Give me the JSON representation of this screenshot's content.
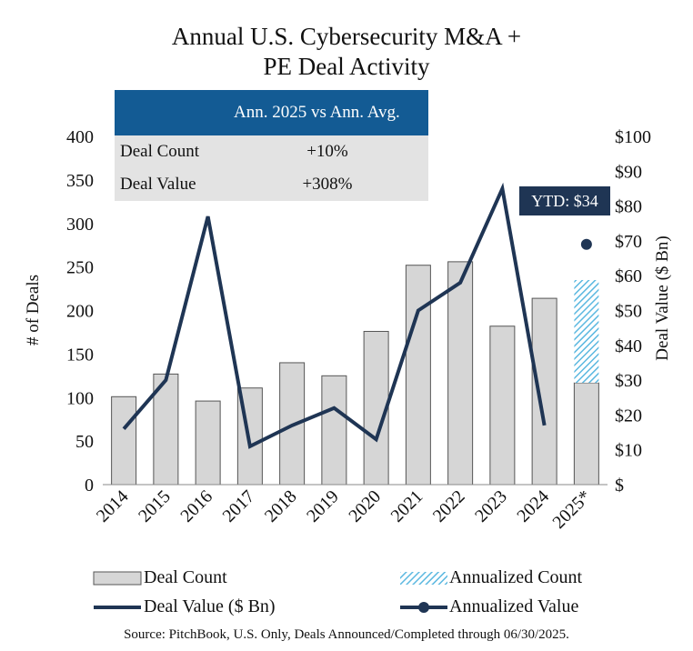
{
  "title_line1": "Annual U.S. Cybersecurity M&A +",
  "title_line2": "PE Deal Activity",
  "callout": {
    "header": "Ann. 2025 vs Ann. Avg.",
    "rows": [
      {
        "label": "Deal Count",
        "value": "+10%"
      },
      {
        "label": "Deal Value",
        "value": "+308%"
      }
    ]
  },
  "ytd_label": "YTD: $34",
  "legend": {
    "deal_count": "Deal Count",
    "annualized_count": "Annualized Count",
    "deal_value": "Deal Value ($ Bn)",
    "annualized_value": "Annualized Value"
  },
  "source": "Source: PitchBook, U.S. Only, Deals Announced/Completed through 06/30/2025.",
  "colors": {
    "bar_fill": "#d6d6d6",
    "bar_stroke": "#555555",
    "line": "#1f3554",
    "hatch": "#5bb8e0",
    "header": "#135b94"
  },
  "chart_data": {
    "type": "bar+line",
    "categories": [
      "2014",
      "2015",
      "2016",
      "2017",
      "2018",
      "2019",
      "2020",
      "2021",
      "2022",
      "2023",
      "2024",
      "2025*"
    ],
    "series": [
      {
        "name": "Deal Count",
        "axis": "left",
        "type": "bar",
        "values": [
          101,
          127,
          96,
          111,
          140,
          125,
          176,
          252,
          256,
          182,
          214,
          117
        ]
      },
      {
        "name": "Annualized Count",
        "axis": "left",
        "type": "bar-stacked-hatched",
        "values": [
          null,
          null,
          null,
          null,
          null,
          null,
          null,
          null,
          null,
          null,
          null,
          118
        ]
      },
      {
        "name": "Deal Value ($ Bn)",
        "axis": "right",
        "type": "line",
        "values": [
          16,
          30,
          77,
          11,
          17,
          22,
          13,
          50,
          58,
          85,
          17,
          null
        ]
      },
      {
        "name": "Annualized Value",
        "axis": "right",
        "type": "point",
        "values": [
          null,
          null,
          null,
          null,
          null,
          null,
          null,
          null,
          null,
          null,
          null,
          69
        ]
      }
    ],
    "ylabel": "# of Deals",
    "ylabel_right": "Deal Value ($ Bn)",
    "ylim": [
      0,
      400
    ],
    "ylim_right": [
      0,
      100
    ],
    "yticks": [
      "0",
      "50",
      "100",
      "150",
      "200",
      "250",
      "300",
      "350",
      "400"
    ],
    "yticks_right": [
      "$",
      "$10",
      "$20",
      "$30",
      "$40",
      "$50",
      "$60",
      "$70",
      "$80",
      "$90",
      "$100"
    ]
  }
}
